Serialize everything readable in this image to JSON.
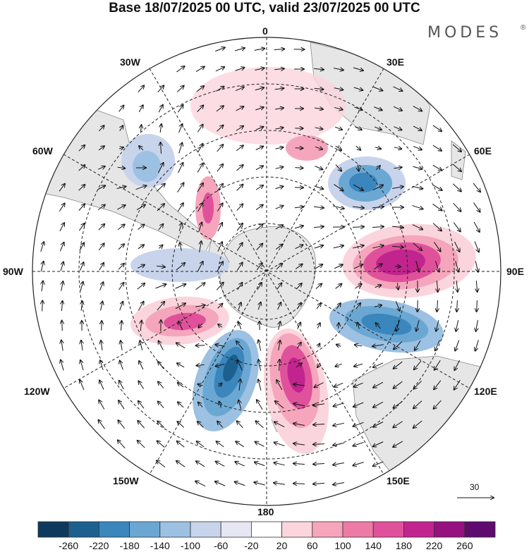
{
  "header": {
    "title": "Base 18/07/2025 00 UTC, valid 23/07/2025 00 UTC",
    "brand": "MODES",
    "brand_mark": "®"
  },
  "longitude_labels": {
    "lon_0": "0",
    "lon_30e": "30E",
    "lon_60e": "60E",
    "lon_90e": "90E",
    "lon_120e": "120E",
    "lon_150e": "150E",
    "lon_180": "180",
    "lon_150w": "150W",
    "lon_120w": "120W",
    "lon_90w": "90W",
    "lon_60w": "60W",
    "lon_30w": "30W"
  },
  "reference_vector": {
    "value": "30"
  },
  "colorbar": {
    "colors": [
      "#0d3a5c",
      "#1d5f8f",
      "#3a86bd",
      "#6ba7d3",
      "#9cc1e2",
      "#c8d4eb",
      "#e7e6f3",
      "#ffffff",
      "#fbd5dd",
      "#f5a6bc",
      "#ee7aa6",
      "#e0519b",
      "#c2248f",
      "#96107f",
      "#5e0a6e"
    ],
    "ticks": [
      "-260",
      "-220",
      "-180",
      "-140",
      "-100",
      "-60",
      "-20",
      "20",
      "60",
      "100",
      "140",
      "180",
      "220",
      "260"
    ]
  },
  "colors": {
    "land": "#e6e6e6",
    "negative": "#3a86bd",
    "positive": "#c2248f"
  }
}
